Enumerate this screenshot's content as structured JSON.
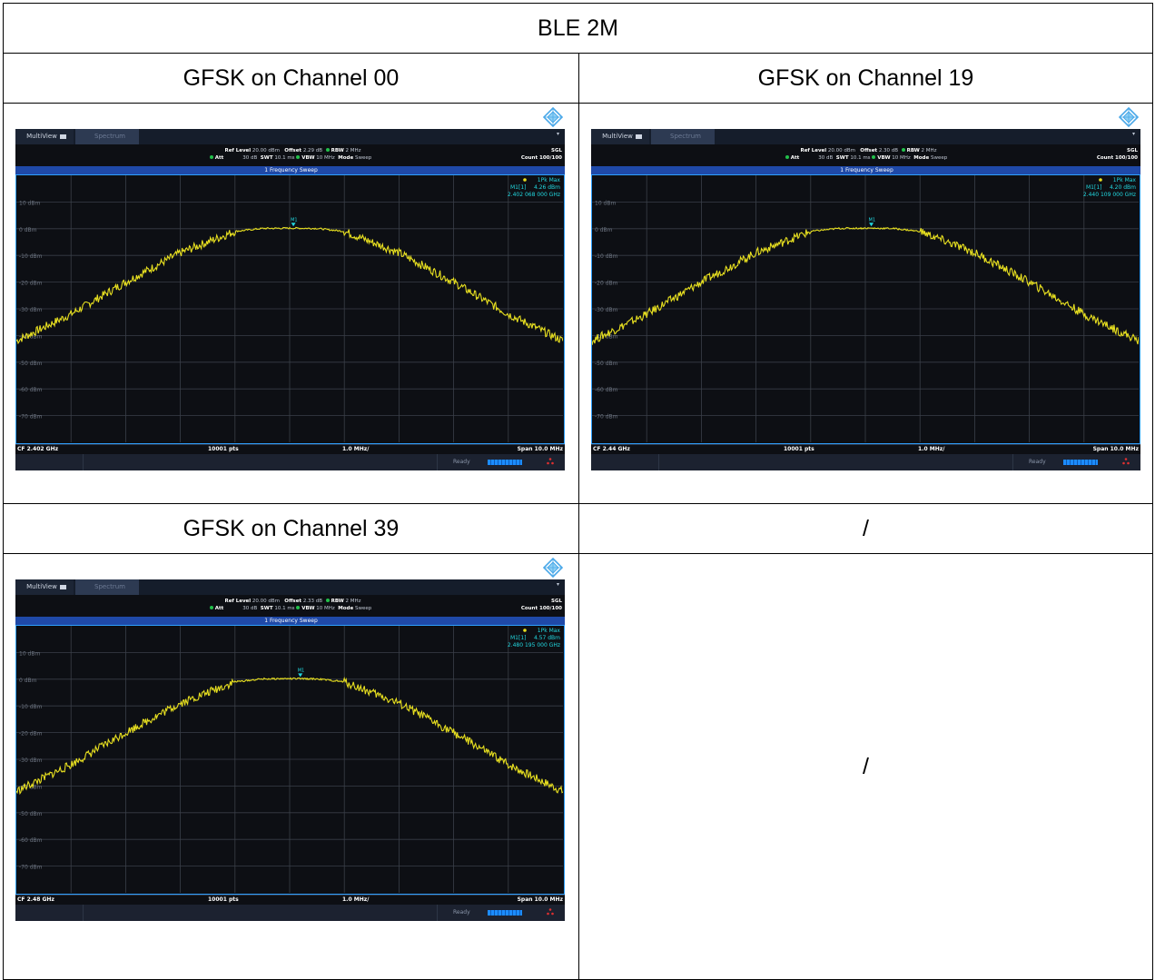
{
  "table": {
    "title": "BLE 2M",
    "headers": [
      "GFSK on Channel 00",
      "GFSK on Channel 19",
      "GFSK on Channel 39",
      "/"
    ],
    "empty_cell": "/"
  },
  "analyzer_common": {
    "tab_multiview": "MultiView",
    "tab_spectrum": "Spectrum",
    "ref_level_label": "Ref Level",
    "ref_level_value": "20.00 dBm",
    "offset_label": "Offset",
    "rbw_label": "RBW",
    "rbw_value": "2 MHz",
    "att_label": "Att",
    "att_value": "30 dB",
    "swt_label": "SWT",
    "swt_value": "10.1 ms",
    "vbw_label": "VBW",
    "vbw_value": "10 MHz",
    "mode_label": "Mode",
    "mode_value": "Sweep",
    "sgl": "SGL",
    "count": "Count 100/100",
    "trace_title": "1 Frequency Sweep",
    "trace_mode": "1Pk Max",
    "marker_label": "M1[1]",
    "marker_tag": "M1",
    "pts": "10001 pts",
    "div": "1.0 MHz/",
    "span": "Span 10.0 MHz",
    "status": "Ready",
    "y_labels": [
      "10 dBm",
      "0 dBm",
      "-10 dBm",
      "-20 dBm",
      "-30 dBm",
      "-40 dBm",
      "-50 dBm",
      "-60 dBm",
      "-70 dBm"
    ],
    "colors": {
      "trace": "#e8e020",
      "marker": "#22d8e0",
      "grid": "#3a3f48",
      "frame": "#2fa0ff"
    }
  },
  "analyzers": [
    {
      "offset": "2.29 dB",
      "marker_level": "4.26 dBm",
      "marker_freq": "2.402 068 000 GHz",
      "cf": "CF 2.402 GHz"
    },
    {
      "offset": "2.30 dB",
      "marker_level": "4.20 dBm",
      "marker_freq": "2.440 109 000 GHz",
      "cf": "CF 2.44 GHz"
    },
    {
      "offset": "2.33 dB",
      "marker_level": "4.57 dBm",
      "marker_freq": "2.480 195 000 GHz",
      "cf": "CF 2.48 GHz"
    }
  ],
  "chart_data": [
    {
      "type": "line",
      "xlabel": "",
      "ylabel": "",
      "xlim": [
        -5,
        5
      ],
      "ylim": [
        -80,
        20
      ],
      "series": [
        {
          "x": [
            -5,
            -4,
            -3,
            -2,
            -1,
            -0.5,
            0,
            0.5,
            1,
            2,
            3,
            4,
            5
          ],
          "y": [
            -42,
            -32,
            -20,
            -9,
            -1,
            0.1,
            0.2,
            0.1,
            -1,
            -9,
            -20,
            -32,
            -42
          ]
        }
      ],
      "marker": {
        "x": 0.068,
        "y": 4.26
      }
    },
    {
      "type": "line",
      "xlabel": "",
      "ylabel": "",
      "xlim": [
        -5,
        5
      ],
      "ylim": [
        -80,
        20
      ],
      "series": [
        {
          "x": [
            -5,
            -4,
            -3,
            -2,
            -1,
            -0.5,
            0,
            0.5,
            1,
            2,
            3,
            4,
            5
          ],
          "y": [
            -42,
            -32,
            -20,
            -9,
            -1,
            0.1,
            0.2,
            0.1,
            -1,
            -9,
            -20,
            -32,
            -42
          ]
        }
      ],
      "marker": {
        "x": 0.109,
        "y": 4.2
      }
    },
    {
      "type": "line",
      "xlabel": "",
      "ylabel": "",
      "xlim": [
        -5,
        5
      ],
      "ylim": [
        -80,
        20
      ],
      "series": [
        {
          "x": [
            -5,
            -4,
            -3,
            -2,
            -1,
            -0.5,
            0,
            0.5,
            1,
            2,
            3,
            4,
            5
          ],
          "y": [
            -42,
            -32,
            -20,
            -9,
            -1,
            0.1,
            0.2,
            0.1,
            -1,
            -9,
            -20,
            -32,
            -42
          ]
        }
      ],
      "marker": {
        "x": 0.195,
        "y": 4.57
      }
    }
  ]
}
